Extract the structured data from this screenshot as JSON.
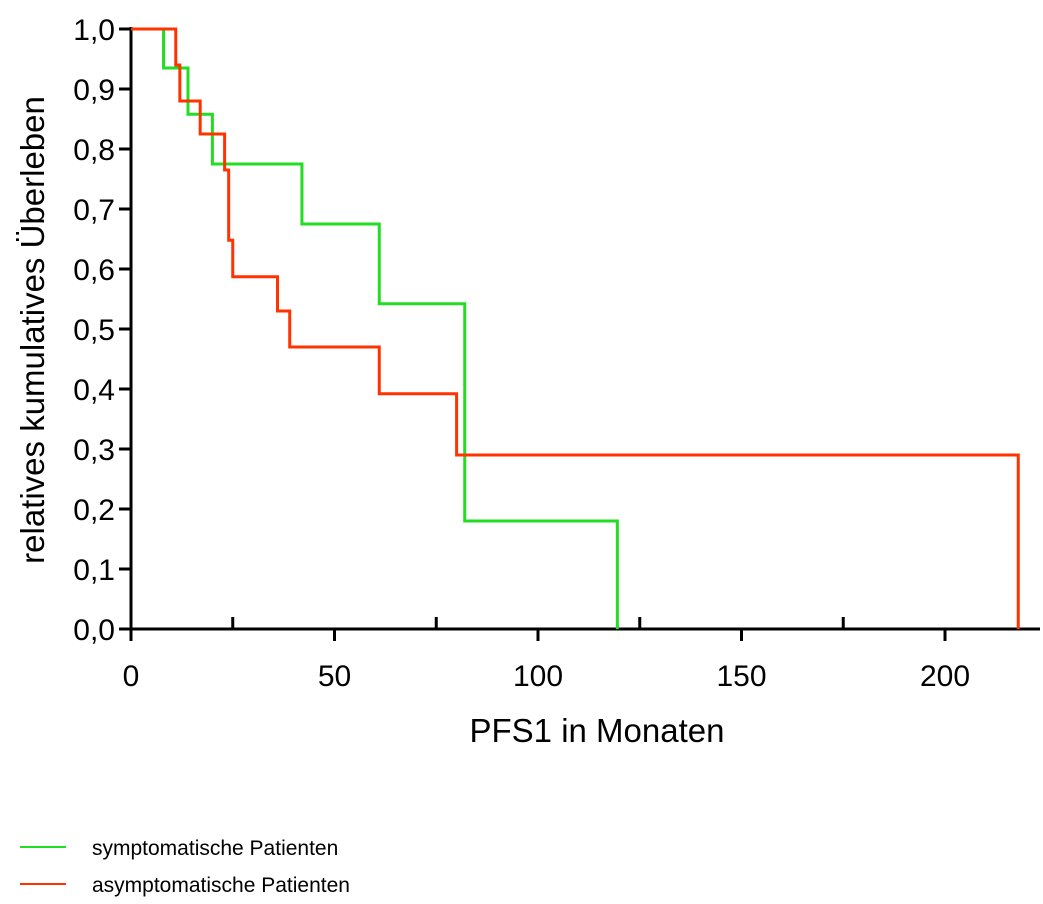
{
  "chart_data": {
    "type": "line",
    "step": true,
    "title": "",
    "xlabel": "PFS1 in Monaten",
    "ylabel": "relatives kumulatives Überleben",
    "xlim": [
      0,
      220
    ],
    "ylim": [
      0,
      1
    ],
    "xticks": [
      0,
      50,
      100,
      150,
      200
    ],
    "xtick_labels": [
      "0",
      "50",
      "100",
      "150",
      "200"
    ],
    "xminor": [
      25,
      75,
      125,
      175
    ],
    "yticks": [
      0,
      0.1,
      0.2,
      0.3,
      0.4,
      0.5,
      0.6,
      0.7,
      0.8,
      0.9,
      1.0
    ],
    "ytick_labels": [
      "0,0",
      "0,1",
      "0,2",
      "0,3",
      "0,4",
      "0,5",
      "0,6",
      "0,7",
      "0,8",
      "0,9",
      "1,0"
    ],
    "grid": false,
    "legend_position": "bottom-left",
    "series": [
      {
        "name": "symptomatische Patienten",
        "color": "#22dd22",
        "x": [
          0,
          8,
          14,
          20,
          42,
          61,
          82,
          119.5
        ],
        "y": [
          1.0,
          0.935,
          0.858,
          0.775,
          0.675,
          0.542,
          0.18,
          0.0
        ]
      },
      {
        "name": "asymptomatische Patienten",
        "color": "#ff3300",
        "x": [
          0,
          11,
          12,
          16,
          17,
          22,
          23,
          24,
          25,
          36,
          38,
          39,
          61,
          80,
          218
        ],
        "y": [
          1.0,
          0.94,
          0.88,
          0.88,
          0.825,
          0.825,
          0.765,
          0.648,
          0.587,
          0.53,
          0.53,
          0.47,
          0.392,
          0.29,
          0.0
        ]
      }
    ]
  }
}
